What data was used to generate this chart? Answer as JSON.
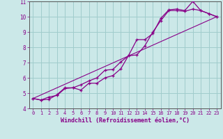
{
  "xlabel": "Windchill (Refroidissement éolien,°C)",
  "bg_color": "#cbe8e8",
  "grid_color": "#a0cccc",
  "line_color": "#880088",
  "xlim": [
    -0.5,
    23.5
  ],
  "ylim": [
    4,
    11
  ],
  "xticks": [
    0,
    1,
    2,
    3,
    4,
    5,
    6,
    7,
    8,
    9,
    10,
    11,
    12,
    13,
    14,
    15,
    16,
    17,
    18,
    19,
    20,
    21,
    22,
    23
  ],
  "yticks": [
    4,
    5,
    6,
    7,
    8,
    9,
    10,
    11
  ],
  "series1_x": [
    0,
    1,
    2,
    3,
    4,
    5,
    6,
    7,
    8,
    9,
    10,
    11,
    12,
    13,
    14,
    15,
    16,
    17,
    18,
    19,
    20,
    21,
    22,
    23
  ],
  "series1_y": [
    4.65,
    4.55,
    4.6,
    4.9,
    5.35,
    5.35,
    5.55,
    5.8,
    6.0,
    6.5,
    6.55,
    7.05,
    7.45,
    7.5,
    8.1,
    9.0,
    9.75,
    10.4,
    10.4,
    10.35,
    10.5,
    10.4,
    10.2,
    10.0
  ],
  "series2_x": [
    0,
    1,
    2,
    3,
    4,
    5,
    6,
    7,
    8,
    9,
    10,
    11,
    12,
    13,
    14,
    15,
    16,
    17,
    18,
    19,
    20,
    21,
    22,
    23
  ],
  "series2_y": [
    4.65,
    4.55,
    4.75,
    4.85,
    5.3,
    5.35,
    5.2,
    5.65,
    5.65,
    6.0,
    6.15,
    6.6,
    7.5,
    8.5,
    8.5,
    8.9,
    9.9,
    10.45,
    10.5,
    10.4,
    11.0,
    10.4,
    10.2,
    10.0
  ],
  "series3_x": [
    0,
    23
  ],
  "series3_y": [
    4.65,
    10.0
  ]
}
